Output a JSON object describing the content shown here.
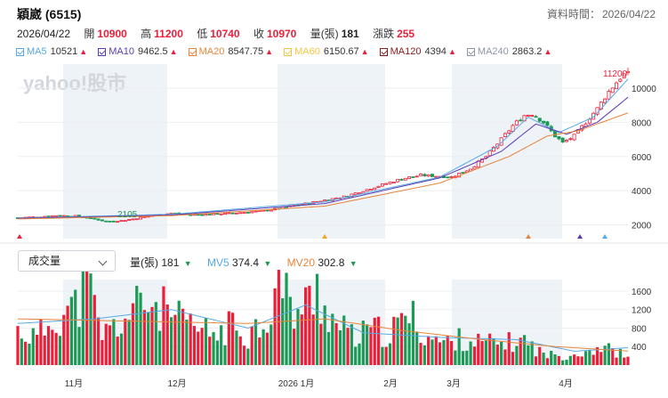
{
  "header": {
    "title": "穎崴 (6515)",
    "data_time_label": "資料時間：",
    "data_time_value": "2026/04/22"
  },
  "quote": {
    "date": "2026/04/22",
    "open_label": "開",
    "open": "10900",
    "high_label": "高",
    "high": "11200",
    "low_label": "低",
    "low": "10740",
    "close_label": "收",
    "close": "10970",
    "volume_label": "量(張)",
    "volume": "181",
    "change_label": "漲跌",
    "change": "255"
  },
  "ma_legend": [
    {
      "name": "MA5",
      "value": "10521",
      "color": "#56a9e6"
    },
    {
      "name": "MA10",
      "value": "9462.5",
      "color": "#5a3bb5"
    },
    {
      "name": "MA20",
      "value": "8547.75",
      "color": "#e8843a"
    },
    {
      "name": "MA60",
      "value": "6150.67",
      "color": "#f5c542"
    },
    {
      "name": "MA120",
      "value": "4394",
      "color": "#8b1a1a"
    },
    {
      "name": "MA240",
      "value": "2863.2",
      "color": "#8e96a3"
    }
  ],
  "watermark": "yahoo!股市",
  "volume_panel": {
    "selector_value": "成交量",
    "vol_label": "量(張)",
    "vol_value": "181",
    "mv5_label": "MV5",
    "mv5_value": "374.4",
    "mv5_color": "#56a9e6",
    "mv20_label": "MV20",
    "mv20_value": "302.8",
    "mv20_color": "#e8843a"
  },
  "colors": {
    "up": "#eb1f39",
    "down": "#1a9a54",
    "band": "#eef3f8"
  },
  "chart_data": [
    {
      "type": "candlestick",
      "ylim": [
        1200,
        11400
      ],
      "y_ticks": [
        2000,
        4000,
        6000,
        8000,
        10000
      ],
      "x_labels": [
        "11月",
        "12月",
        "2026 1月",
        "2月",
        "3月",
        "4月"
      ],
      "annotations": {
        "low": "2105",
        "high": "11200"
      },
      "close_trend": [
        {
          "t": 0,
          "v": 2420
        },
        {
          "t": 5,
          "v": 2470
        },
        {
          "t": 10,
          "v": 2550
        },
        {
          "t": 15,
          "v": 2520
        },
        {
          "t": 20,
          "v": 2350
        },
        {
          "t": 23,
          "v": 2200
        },
        {
          "t": 27,
          "v": 2250
        },
        {
          "t": 30,
          "v": 2350
        },
        {
          "t": 35,
          "v": 2550
        },
        {
          "t": 40,
          "v": 2680
        },
        {
          "t": 45,
          "v": 2600
        },
        {
          "t": 50,
          "v": 2620
        },
        {
          "t": 55,
          "v": 2680
        },
        {
          "t": 60,
          "v": 2750
        },
        {
          "t": 65,
          "v": 2850
        },
        {
          "t": 70,
          "v": 3050
        },
        {
          "t": 75,
          "v": 3250
        },
        {
          "t": 80,
          "v": 3450
        },
        {
          "t": 85,
          "v": 3650
        },
        {
          "t": 90,
          "v": 4000
        },
        {
          "t": 95,
          "v": 4350
        },
        {
          "t": 100,
          "v": 4700
        },
        {
          "t": 105,
          "v": 4900
        },
        {
          "t": 110,
          "v": 4850
        },
        {
          "t": 113,
          "v": 4800
        },
        {
          "t": 118,
          "v": 5300
        },
        {
          "t": 122,
          "v": 6000
        },
        {
          "t": 126,
          "v": 7000
        },
        {
          "t": 129,
          "v": 7800
        },
        {
          "t": 132,
          "v": 8400
        },
        {
          "t": 134,
          "v": 8500
        },
        {
          "t": 137,
          "v": 8000
        },
        {
          "t": 140,
          "v": 7200
        },
        {
          "t": 142,
          "v": 6800
        },
        {
          "t": 145,
          "v": 7200
        },
        {
          "t": 148,
          "v": 8000
        },
        {
          "t": 151,
          "v": 8800
        },
        {
          "t": 154,
          "v": 9800
        },
        {
          "t": 157,
          "v": 10600
        },
        {
          "t": 159,
          "v": 10970
        }
      ],
      "ma_trends": {
        "MA5": [
          {
            "t": 0,
            "v": 2400
          },
          {
            "t": 40,
            "v": 2620
          },
          {
            "t": 80,
            "v": 3350
          },
          {
            "t": 110,
            "v": 4800
          },
          {
            "t": 125,
            "v": 6600
          },
          {
            "t": 133,
            "v": 8300
          },
          {
            "t": 141,
            "v": 7400
          },
          {
            "t": 150,
            "v": 8300
          },
          {
            "t": 159,
            "v": 10521
          }
        ],
        "MA10": [
          {
            "t": 0,
            "v": 2380
          },
          {
            "t": 40,
            "v": 2580
          },
          {
            "t": 80,
            "v": 3250
          },
          {
            "t": 110,
            "v": 4750
          },
          {
            "t": 126,
            "v": 6300
          },
          {
            "t": 135,
            "v": 7900
          },
          {
            "t": 143,
            "v": 7300
          },
          {
            "t": 151,
            "v": 8000
          },
          {
            "t": 159,
            "v": 9462.5
          }
        ],
        "MA20": [
          {
            "t": 0,
            "v": 2350
          },
          {
            "t": 40,
            "v": 2540
          },
          {
            "t": 80,
            "v": 3100
          },
          {
            "t": 110,
            "v": 4450
          },
          {
            "t": 128,
            "v": 6000
          },
          {
            "t": 138,
            "v": 7200
          },
          {
            "t": 146,
            "v": 7500
          },
          {
            "t": 159,
            "v": 8547.75
          }
        ]
      }
    },
    {
      "type": "bar",
      "series": "volume",
      "ylim": [
        0,
        1850
      ],
      "y_ticks": [
        400,
        800,
        1200,
        1600
      ],
      "volume_trend": [
        {
          "t": 0,
          "v": 780
        },
        {
          "t": 5,
          "v": 620
        },
        {
          "t": 10,
          "v": 1150
        },
        {
          "t": 15,
          "v": 1300
        },
        {
          "t": 18,
          "v": 1850
        },
        {
          "t": 22,
          "v": 700
        },
        {
          "t": 26,
          "v": 900
        },
        {
          "t": 30,
          "v": 1200
        },
        {
          "t": 33,
          "v": 1450
        },
        {
          "t": 37,
          "v": 1300
        },
        {
          "t": 42,
          "v": 1000
        },
        {
          "t": 47,
          "v": 800
        },
        {
          "t": 52,
          "v": 700
        },
        {
          "t": 56,
          "v": 900
        },
        {
          "t": 60,
          "v": 700
        },
        {
          "t": 65,
          "v": 1100
        },
        {
          "t": 68,
          "v": 1850
        },
        {
          "t": 72,
          "v": 1200
        },
        {
          "t": 76,
          "v": 1400
        },
        {
          "t": 78,
          "v": 1750
        },
        {
          "t": 82,
          "v": 1000
        },
        {
          "t": 88,
          "v": 600
        },
        {
          "t": 92,
          "v": 800
        },
        {
          "t": 97,
          "v": 700
        },
        {
          "t": 102,
          "v": 1150
        },
        {
          "t": 106,
          "v": 700
        },
        {
          "t": 111,
          "v": 500
        },
        {
          "t": 116,
          "v": 600
        },
        {
          "t": 121,
          "v": 500
        },
        {
          "t": 127,
          "v": 500
        },
        {
          "t": 132,
          "v": 550
        },
        {
          "t": 137,
          "v": 250
        },
        {
          "t": 142,
          "v": 200
        },
        {
          "t": 147,
          "v": 300
        },
        {
          "t": 152,
          "v": 420
        },
        {
          "t": 156,
          "v": 300
        },
        {
          "t": 159,
          "v": 181
        }
      ],
      "mv5_trend": [
        {
          "t": 0,
          "v": 900
        },
        {
          "t": 20,
          "v": 1000
        },
        {
          "t": 40,
          "v": 1200
        },
        {
          "t": 60,
          "v": 800
        },
        {
          "t": 75,
          "v": 1300
        },
        {
          "t": 90,
          "v": 700
        },
        {
          "t": 110,
          "v": 600
        },
        {
          "t": 130,
          "v": 550
        },
        {
          "t": 145,
          "v": 300
        },
        {
          "t": 159,
          "v": 374.4
        }
      ],
      "mv20_trend": [
        {
          "t": 0,
          "v": 1000
        },
        {
          "t": 30,
          "v": 950
        },
        {
          "t": 60,
          "v": 900
        },
        {
          "t": 80,
          "v": 1000
        },
        {
          "t": 100,
          "v": 750
        },
        {
          "t": 120,
          "v": 560
        },
        {
          "t": 140,
          "v": 400
        },
        {
          "t": 159,
          "v": 302.8
        }
      ]
    }
  ]
}
